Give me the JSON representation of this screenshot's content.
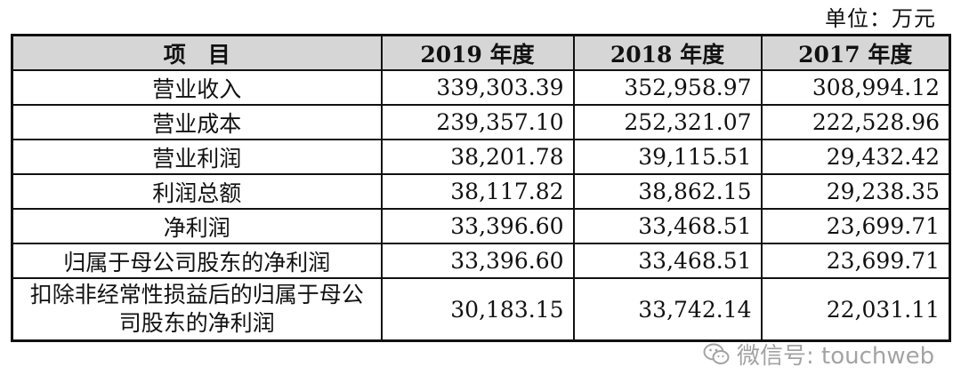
{
  "unit_label": "单位：万元",
  "table": {
    "headers": [
      "项　目",
      "2019 年度",
      "2018 年度",
      "2017 年度"
    ],
    "rows": [
      {
        "label": "营业收入",
        "values": [
          "339,303.39",
          "352,958.97",
          "308,994.12"
        ]
      },
      {
        "label": "营业成本",
        "values": [
          "239,357.10",
          "252,321.07",
          "222,528.96"
        ]
      },
      {
        "label": "营业利润",
        "values": [
          "38,201.78",
          "39,115.51",
          "29,432.42"
        ]
      },
      {
        "label": "利润总额",
        "values": [
          "38,117.82",
          "38,862.15",
          "29,238.35"
        ]
      },
      {
        "label": "净利润",
        "values": [
          "33,396.60",
          "33,468.51",
          "23,699.71"
        ]
      },
      {
        "label": "归属于母公司股东的净利润",
        "values": [
          "33,396.60",
          "33,468.51",
          "23,699.71"
        ]
      },
      {
        "label": "扣除非经常性损益后的归属于母公司股东的净利润",
        "values": [
          "30,183.15",
          "33,742.14",
          "22,031.11"
        ]
      }
    ]
  },
  "watermark": {
    "icon": "wechat-icon",
    "text": "微信号: touchweb"
  }
}
